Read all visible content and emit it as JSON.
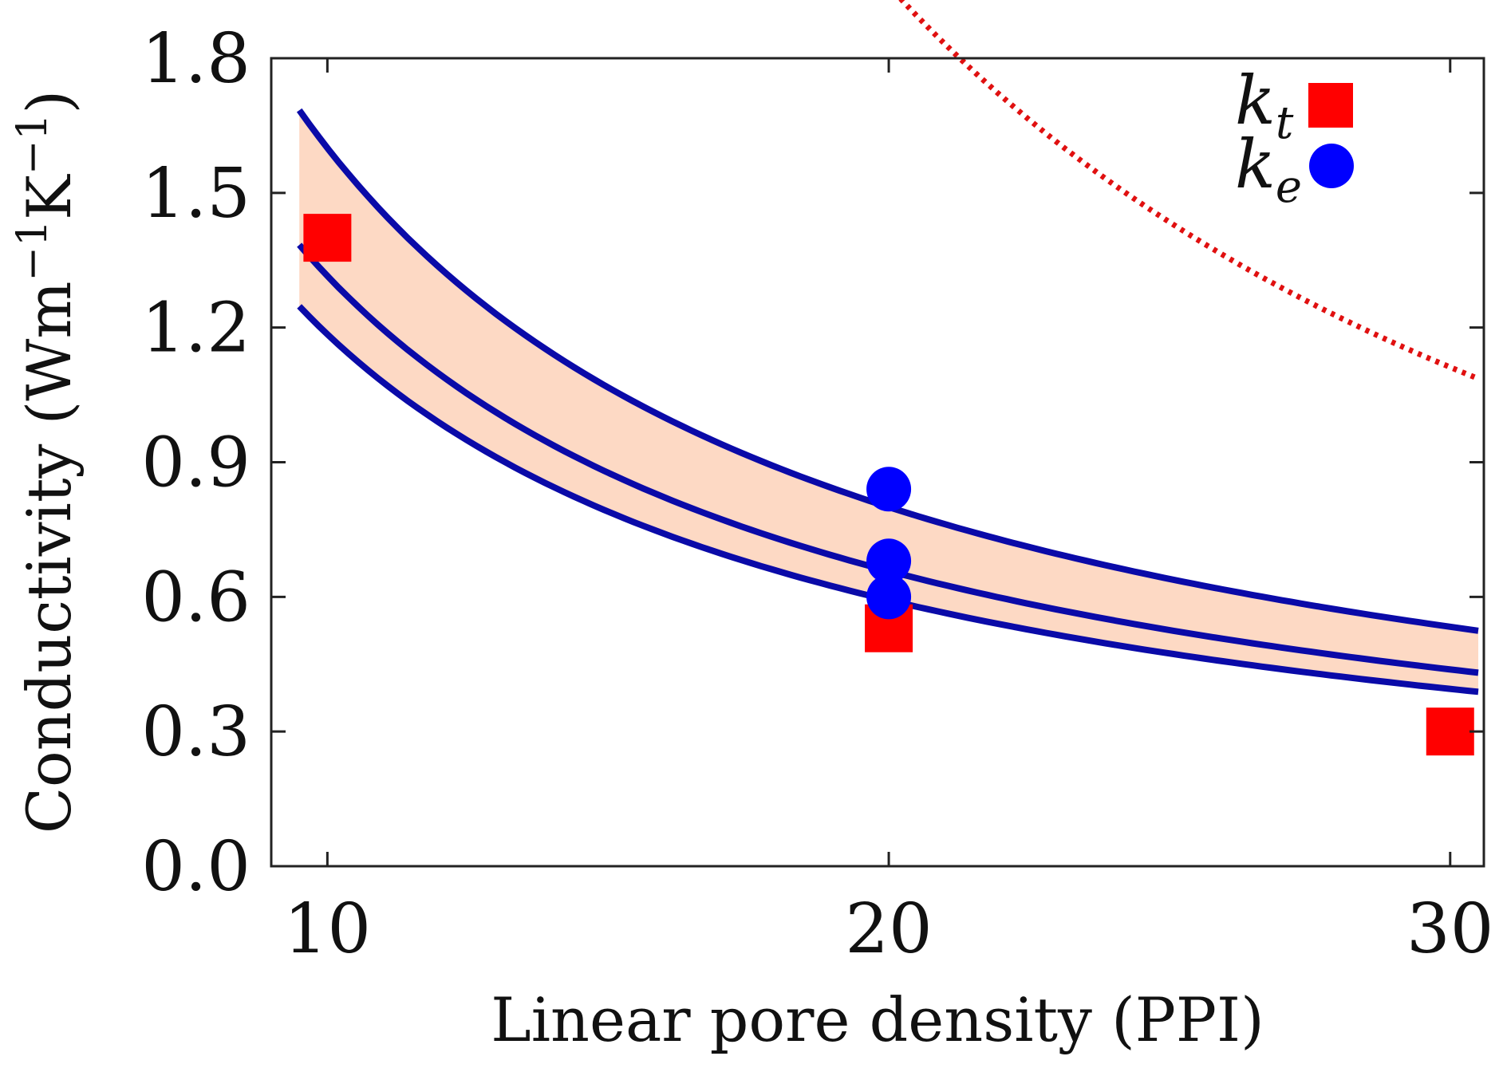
{
  "chart_data": {
    "type": "line",
    "title": "",
    "xlabel": "Linear pore density (PPI)",
    "ylabel": "Conductivity (Wm",
    "ylabel_mid": "K",
    "ylabel_sup": "−1",
    "ylabel_end": ")",
    "xlim": [
      9.0,
      30.6
    ],
    "ylim": [
      0.0,
      1.8
    ],
    "x_ticks": [
      10,
      20,
      30
    ],
    "x_tick_labels": [
      "10",
      "20",
      "30"
    ],
    "y_ticks": [
      0.0,
      0.3,
      0.6,
      0.9,
      1.2,
      1.5,
      1.8
    ],
    "y_tick_labels": [
      "0.0",
      "0.3",
      "0.6",
      "0.9",
      "1.2",
      "1.5",
      "1.8"
    ],
    "grid": false,
    "legend_position": "top-right",
    "curve_x_range": [
      9.5,
      30.5
    ],
    "series": [
      {
        "name": "k_t",
        "legend_base": "k",
        "legend_sub": "t",
        "marker": "square",
        "color": "#ff0000",
        "x": [
          10,
          20,
          30
        ],
        "values": [
          1.4,
          0.53,
          0.3
        ]
      },
      {
        "name": "k_e",
        "legend_base": "k",
        "legend_sub": "e",
        "marker": "circle",
        "color": "#0000ff",
        "x": [
          20,
          20,
          20
        ],
        "values": [
          0.84,
          0.68,
          0.6
        ]
      }
    ],
    "fit_curves": [
      {
        "name": "upper-fit",
        "style": "solid",
        "color": "#0a0aa8",
        "coef": 16.0,
        "exp": 1.0
      },
      {
        "name": "mean-fit",
        "style": "solid",
        "color": "#0a0aa8",
        "coef": 13.15,
        "exp": 1.0
      },
      {
        "name": "lower-fit",
        "style": "solid",
        "color": "#0a0aa8",
        "coef": 11.85,
        "exp": 1.0
      },
      {
        "name": "kt-fit",
        "style": "dotted",
        "color": "#e01010",
        "coef": 130,
        "exp": 1.4
      }
    ],
    "band": {
      "between": [
        "upper-fit",
        "lower-fit"
      ],
      "color": "#fdd9c4"
    }
  }
}
